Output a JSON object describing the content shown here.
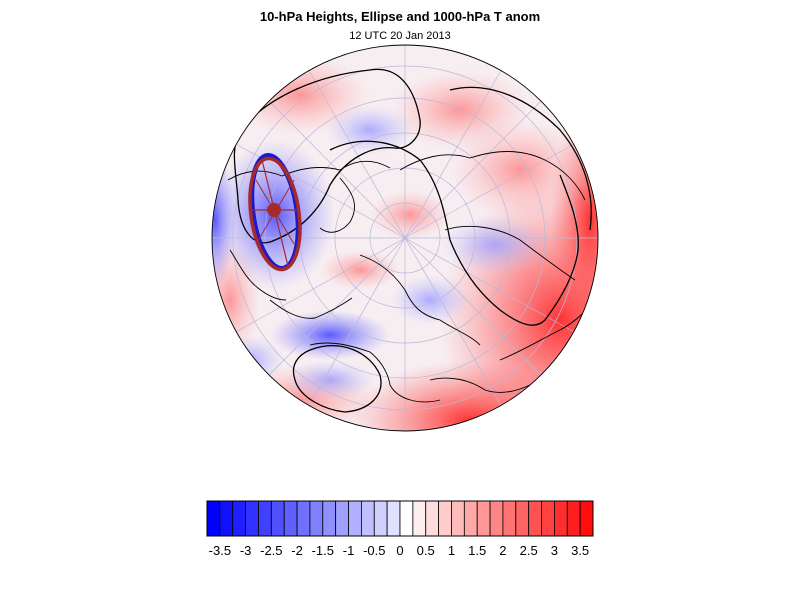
{
  "title": "10-hPa Heights, Ellipse and 1000-hPa T anom",
  "subtitle": "12 UTC 20 Jan 2013",
  "colorbar": {
    "levels": [
      -3.75,
      -3.5,
      -3.25,
      -3,
      -2.75,
      -2.5,
      -2.25,
      -2,
      -1.75,
      -1.5,
      -1.25,
      -1,
      -0.75,
      -0.5,
      -0.25,
      0,
      0.25,
      0.5,
      0.75,
      1,
      1.25,
      1.5,
      1.75,
      2,
      2.25,
      2.5,
      2.75,
      3,
      3.25,
      3.5,
      3.75
    ],
    "tick_labels": [
      "-3.5",
      "-3",
      "-2.5",
      "-2",
      "-1.5",
      "-1",
      "-0.5",
      "0",
      "0.5",
      "1",
      "1.5",
      "2",
      "2.5",
      "3",
      "3.5"
    ],
    "negative_color": "#0000ff",
    "positive_color": "#ff0000",
    "neutral_color": "#ffffff"
  },
  "map": {
    "projection": "orthographic, north polar",
    "ellipse_color": "#a52a2a",
    "contour_color": "#000000",
    "coastline_color": "#000000"
  }
}
